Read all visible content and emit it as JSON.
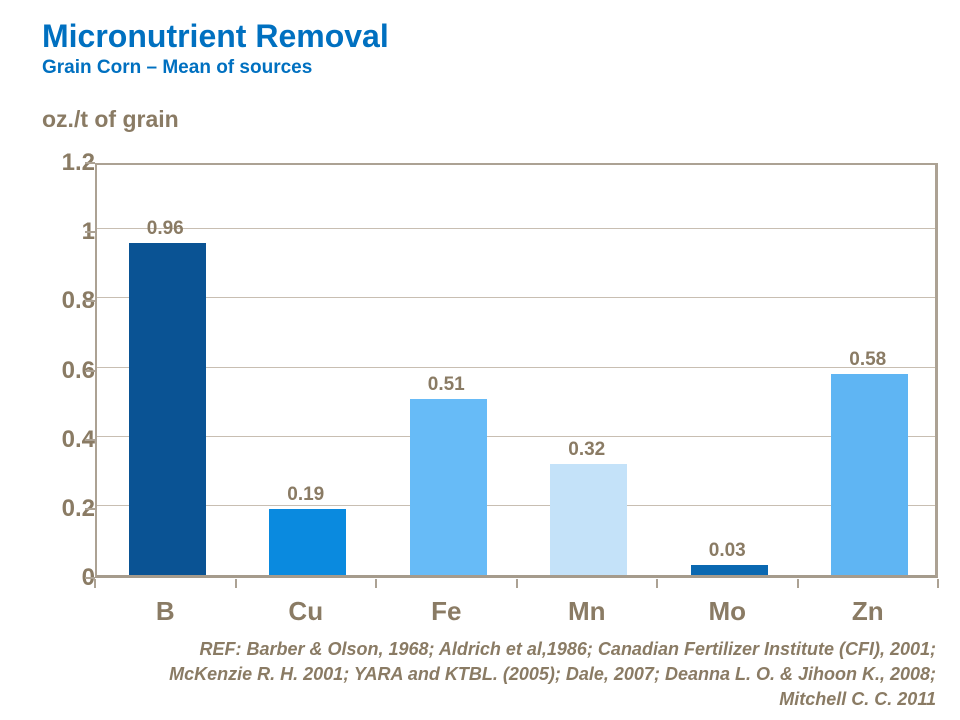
{
  "slide": {
    "title": "Micronutrient Removal",
    "subtitle": "Grain Corn – Mean of sources",
    "axis_unit_label": "oz./t of grain",
    "reference_lines": [
      "REF: Barber & Olson, 1968; Aldrich et al,1986; Canadian Fertilizer Institute (CFI), 2001;",
      "McKenzie R. H. 2001; YARA and KTBL. (2005); Dale, 2007; Deanna L. O. & Jihoon K., 2008;",
      "Mitchell C. C. 2011"
    ]
  },
  "colors": {
    "title_blue": "#0070C0",
    "text_taupe": "#8A7B64",
    "gridline": "#C8BEB2",
    "axis_border": "#ACA294",
    "background": "#FFFFFF"
  },
  "chart_data": {
    "type": "bar",
    "title": "Micronutrient Removal",
    "subtitle": "Grain Corn – Mean of sources",
    "ylabel": "oz./t of grain",
    "xlabel": "",
    "categories": [
      "B",
      "Cu",
      "Fe",
      "Mn",
      "Mo",
      "Zn"
    ],
    "values": [
      0.96,
      0.19,
      0.51,
      0.32,
      0.03,
      0.58
    ],
    "data_labels": [
      "0.96",
      "0.19",
      "0.51",
      "0.32",
      "0.03",
      "0.58"
    ],
    "bar_colors": [
      "#0A5394",
      "#0A8ADF",
      "#67BBF7",
      "#C4E2F9",
      "#0A68B1",
      "#5FB5F3"
    ],
    "ylim": [
      0,
      1.2
    ],
    "ytick_step": 0.2,
    "ytick_labels": [
      "0",
      "0.2",
      "0.4",
      "0.6",
      "0.8",
      "1",
      "1.2"
    ],
    "grid": true,
    "legend_position": "none"
  }
}
